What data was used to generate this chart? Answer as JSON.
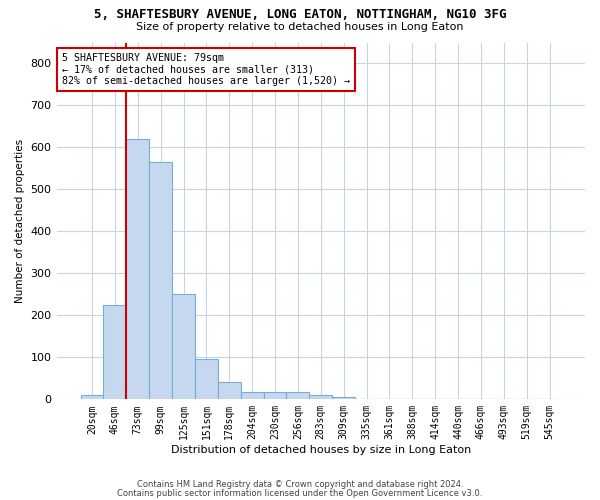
{
  "title_line1": "5, SHAFTESBURY AVENUE, LONG EATON, NOTTINGHAM, NG10 3FG",
  "title_line2": "Size of property relative to detached houses in Long Eaton",
  "xlabel": "Distribution of detached houses by size in Long Eaton",
  "ylabel": "Number of detached properties",
  "bar_labels": [
    "20sqm",
    "46sqm",
    "73sqm",
    "99sqm",
    "125sqm",
    "151sqm",
    "178sqm",
    "204sqm",
    "230sqm",
    "256sqm",
    "283sqm",
    "309sqm",
    "335sqm",
    "361sqm",
    "388sqm",
    "414sqm",
    "440sqm",
    "466sqm",
    "493sqm",
    "519sqm",
    "545sqm"
  ],
  "bar_heights": [
    10,
    225,
    620,
    565,
    250,
    95,
    42,
    18,
    18,
    18,
    10,
    5,
    0,
    0,
    0,
    0,
    0,
    0,
    0,
    0,
    0
  ],
  "bar_color": "#c5d8f0",
  "bar_edge_color": "#7aadd4",
  "annotation_text": "5 SHAFTESBURY AVENUE: 79sqm\n← 17% of detached houses are smaller (313)\n82% of semi-detached houses are larger (1,520) →",
  "annotation_box_color": "#ffffff",
  "annotation_box_edge": "#cc0000",
  "ylim": [
    0,
    850
  ],
  "yticks": [
    0,
    100,
    200,
    300,
    400,
    500,
    600,
    700,
    800
  ],
  "footer_line1": "Contains HM Land Registry data © Crown copyright and database right 2024.",
  "footer_line2": "Contains public sector information licensed under the Open Government Licence v3.0.",
  "bg_color": "#ffffff",
  "grid_color": "#c8d4e8",
  "red_line_color": "#cc0000"
}
